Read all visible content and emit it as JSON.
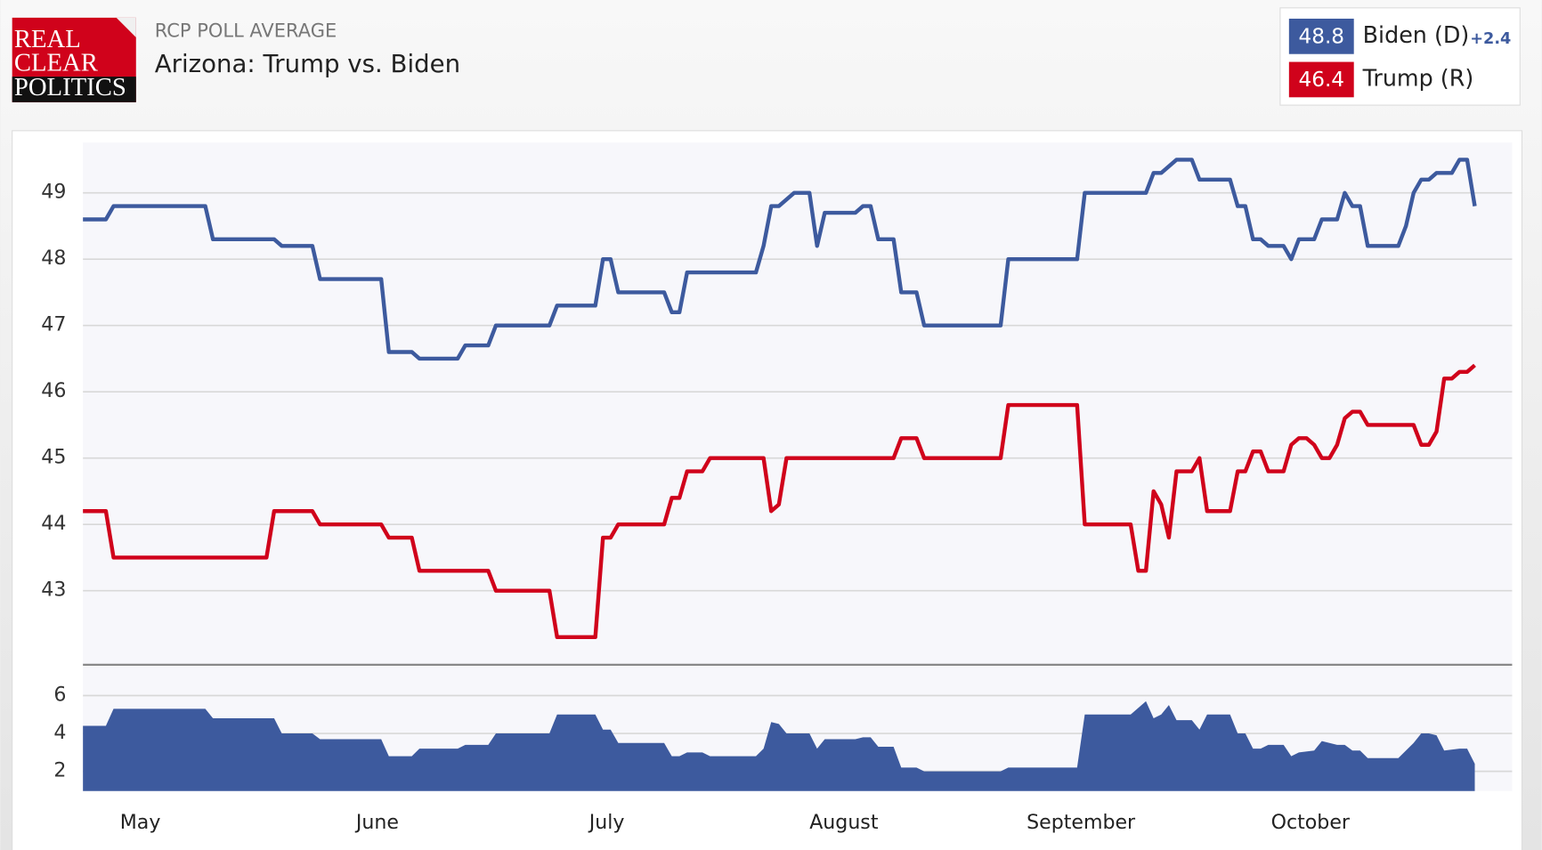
{
  "header": {
    "logo": [
      "REAL",
      "CLEAR",
      "POLITICS"
    ],
    "kicker": "RCP POLL AVERAGE",
    "title": "Arizona: Trump vs. Biden"
  },
  "chart_data": [
    {
      "type": "line",
      "spread_label": "+2.4",
      "xlim": [
        0,
        182
      ],
      "ylim": [
        41.89,
        49.76
      ],
      "yticks": [
        43,
        44,
        45,
        46,
        47,
        48,
        49
      ],
      "grid": true,
      "series": [
        {
          "name": "Biden (D)",
          "color": "#3d5a9e",
          "x": [
            0,
            3,
            4,
            16,
            17,
            25,
            26,
            30,
            31,
            39,
            40,
            43,
            44,
            49,
            50,
            53,
            54,
            61,
            62,
            67,
            68,
            69,
            70,
            76,
            77,
            78,
            79,
            88,
            89,
            90,
            91,
            93,
            95,
            96,
            97,
            101,
            102,
            103,
            104,
            106,
            107,
            109,
            110,
            120,
            121,
            130,
            131,
            139,
            140,
            141,
            143,
            145,
            146,
            150,
            151,
            152,
            153,
            154,
            155,
            157,
            158,
            159,
            161,
            162,
            164,
            165,
            166,
            167,
            168,
            172,
            173,
            174,
            175,
            176,
            177,
            179,
            180,
            181,
            182
          ],
          "values": [
            48.6,
            48.6,
            48.8,
            48.8,
            48.3,
            48.3,
            48.2,
            48.2,
            47.7,
            47.7,
            46.6,
            46.6,
            46.5,
            46.5,
            46.7,
            46.7,
            47.0,
            47.0,
            47.3,
            47.3,
            48.0,
            48.0,
            47.5,
            47.5,
            47.2,
            47.2,
            47.8,
            47.8,
            48.2,
            48.8,
            48.8,
            49.0,
            49.0,
            48.2,
            48.7,
            48.7,
            48.8,
            48.8,
            48.3,
            48.3,
            47.5,
            47.5,
            47.0,
            47.0,
            48.0,
            48.0,
            49.0,
            49.0,
            49.3,
            49.3,
            49.5,
            49.5,
            49.2,
            49.2,
            48.8,
            48.8,
            48.3,
            48.3,
            48.2,
            48.2,
            48.0,
            48.3,
            48.3,
            48.6,
            48.6,
            49.0,
            48.8,
            48.8,
            48.2,
            48.2,
            48.5,
            49.0,
            49.2,
            49.2,
            49.3,
            49.3,
            49.5,
            49.5,
            48.8
          ]
        },
        {
          "name": "Trump (R)",
          "color": "#d0021b",
          "x": [
            0,
            3,
            4,
            24,
            25,
            30,
            31,
            39,
            40,
            43,
            44,
            53,
            54,
            61,
            62,
            67,
            68,
            69,
            70,
            76,
            77,
            78,
            79,
            81,
            82,
            89,
            90,
            91,
            92,
            106,
            107,
            109,
            110,
            120,
            121,
            130,
            131,
            137,
            138,
            139,
            140,
            141,
            142,
            143,
            145,
            146,
            147,
            150,
            151,
            152,
            153,
            154,
            155,
            157,
            158,
            159,
            160,
            161,
            162,
            163,
            164,
            165,
            166,
            167,
            168,
            174,
            175,
            176,
            177,
            178,
            179,
            180,
            181,
            182
          ],
          "values": [
            44.2,
            44.2,
            43.5,
            43.5,
            44.2,
            44.2,
            44.0,
            44.0,
            43.8,
            43.8,
            43.3,
            43.3,
            43.0,
            43.0,
            42.3,
            42.3,
            43.8,
            43.8,
            44.0,
            44.0,
            44.4,
            44.4,
            44.8,
            44.8,
            45.0,
            45.0,
            44.2,
            44.3,
            45.0,
            45.0,
            45.3,
            45.3,
            45.0,
            45.0,
            45.8,
            45.8,
            44.0,
            44.0,
            43.3,
            43.3,
            44.5,
            44.3,
            43.8,
            44.8,
            44.8,
            45.0,
            44.2,
            44.2,
            44.8,
            44.8,
            45.1,
            45.1,
            44.8,
            44.8,
            45.2,
            45.3,
            45.3,
            45.2,
            45.0,
            45.0,
            45.2,
            45.6,
            45.7,
            45.7,
            45.5,
            45.5,
            45.2,
            45.2,
            45.4,
            46.2,
            46.2,
            46.3,
            46.3,
            46.4
          ]
        }
      ]
    },
    {
      "type": "area",
      "color": "#3d5a9e",
      "xlim": [
        0,
        182
      ],
      "ylim": [
        0.96,
        7.6
      ],
      "yticks": [
        2,
        4,
        6
      ],
      "grid": true,
      "xticks": [
        {
          "value": 7.5,
          "label": "May"
        },
        {
          "value": 38.5,
          "label": "June"
        },
        {
          "value": 68.5,
          "label": "July"
        },
        {
          "value": 99.5,
          "label": "August"
        },
        {
          "value": 130.5,
          "label": "September"
        },
        {
          "value": 160.5,
          "label": "October"
        }
      ],
      "x": [
        0,
        3,
        4,
        16,
        17,
        25,
        26,
        30,
        31,
        39,
        40,
        43,
        44,
        49,
        50,
        53,
        54,
        61,
        62,
        67,
        68,
        69,
        70,
        76,
        77,
        78,
        79,
        81,
        82,
        88,
        89,
        90,
        91,
        92,
        95,
        96,
        97,
        101,
        102,
        103,
        104,
        106,
        107,
        109,
        110,
        120,
        121,
        130,
        131,
        137,
        139,
        140,
        141,
        142,
        143,
        145,
        146,
        147,
        150,
        151,
        152,
        153,
        154,
        155,
        157,
        158,
        159,
        161,
        162,
        164,
        165,
        166,
        167,
        168,
        172,
        173,
        174,
        175,
        176,
        177,
        178,
        180,
        181,
        182
      ],
      "values": [
        4.4,
        4.4,
        5.3,
        5.3,
        4.8,
        4.8,
        4.0,
        4.0,
        3.7,
        3.7,
        2.8,
        2.8,
        3.2,
        3.2,
        3.4,
        3.4,
        4.0,
        4.0,
        5.0,
        5.0,
        4.2,
        4.2,
        3.5,
        3.5,
        2.8,
        2.8,
        3.0,
        3.0,
        2.8,
        2.8,
        3.2,
        4.6,
        4.5,
        4.0,
        4.0,
        3.2,
        3.7,
        3.7,
        3.8,
        3.8,
        3.3,
        3.3,
        2.2,
        2.2,
        2.0,
        2.0,
        2.2,
        2.2,
        5.0,
        5.0,
        5.7,
        4.8,
        5.0,
        5.5,
        4.7,
        4.7,
        4.2,
        5.0,
        5.0,
        4.0,
        4.0,
        3.2,
        3.2,
        3.4,
        3.4,
        2.8,
        3.0,
        3.1,
        3.6,
        3.4,
        3.4,
        3.1,
        3.1,
        2.7,
        2.7,
        3.1,
        3.5,
        4.0,
        4.0,
        3.9,
        3.1,
        3.2,
        3.2,
        2.4
      ]
    }
  ]
}
